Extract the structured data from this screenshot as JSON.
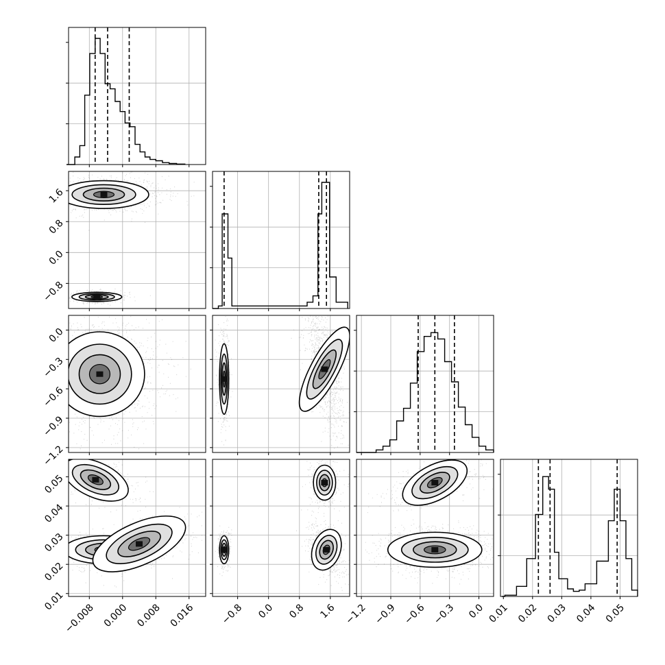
{
  "chart_data": {
    "type": "scatter",
    "subtype": "corner-plot",
    "grid": true,
    "quantiles_shown": true,
    "params": [
      {
        "range": [
          -0.013,
          0.02
        ],
        "ticks": [
          -0.008,
          0.0,
          0.008,
          0.016
        ],
        "tick_labels": [
          "−0.008",
          "0.000",
          "0.008",
          "0.016"
        ],
        "quantiles": [
          -0.0066,
          -0.0036,
          0.0016
        ],
        "hist": [
          [
            -0.0135,
            0
          ],
          [
            -0.0115,
            0.06
          ],
          [
            -0.0103,
            0.15
          ],
          [
            -0.0091,
            0.55
          ],
          [
            -0.0079,
            0.88
          ],
          [
            -0.0066,
            1.0
          ],
          [
            -0.0054,
            0.88
          ],
          [
            -0.0042,
            0.64
          ],
          [
            -0.003,
            0.6
          ],
          [
            -0.0018,
            0.5
          ],
          [
            -0.0006,
            0.42
          ],
          [
            0.0006,
            0.33
          ],
          [
            0.0018,
            0.3
          ],
          [
            0.003,
            0.16
          ],
          [
            0.0042,
            0.1
          ],
          [
            0.0054,
            0.06
          ],
          [
            0.0066,
            0.04
          ],
          [
            0.008,
            0.03
          ],
          [
            0.0096,
            0.015
          ],
          [
            0.0112,
            0.008
          ],
          [
            0.013,
            0.004
          ],
          [
            0.015,
            0.0
          ]
        ]
      },
      {
        "range": [
          -1.45,
          2.1
        ],
        "ticks": [
          -0.8,
          0.0,
          0.8,
          1.6
        ],
        "tick_labels": [
          "−0.8",
          "0.0",
          "0.8",
          "1.6"
        ],
        "quantiles": [
          -1.15,
          1.3,
          1.5
        ],
        "hist": [
          [
            -1.45,
            0
          ],
          [
            -1.3,
            0.02
          ],
          [
            -1.2,
            0.75
          ],
          [
            -1.05,
            0.4
          ],
          [
            -0.95,
            0.02
          ],
          [
            0.8,
            0.02
          ],
          [
            1.0,
            0.05
          ],
          [
            1.15,
            0.1
          ],
          [
            1.28,
            0.75
          ],
          [
            1.38,
            1.0
          ],
          [
            1.58,
            0.25
          ],
          [
            1.75,
            0.05
          ],
          [
            2.05,
            0.0
          ]
        ]
      },
      {
        "range": [
          -1.25,
          0.15
        ],
        "ticks": [
          -1.2,
          -0.9,
          -0.6,
          -0.3,
          0.0
        ],
        "tick_labels": [
          "−1.2",
          "−0.9",
          "−0.6",
          "−0.3",
          "0.0"
        ],
        "quantiles": [
          -0.62,
          -0.45,
          -0.25
        ],
        "hist": [
          [
            -1.25,
            0
          ],
          [
            -1.05,
            0.02
          ],
          [
            -0.98,
            0.05
          ],
          [
            -0.91,
            0.1
          ],
          [
            -0.84,
            0.25
          ],
          [
            -0.77,
            0.35
          ],
          [
            -0.7,
            0.55
          ],
          [
            -0.63,
            0.8
          ],
          [
            -0.56,
            0.92
          ],
          [
            -0.49,
            0.95
          ],
          [
            -0.42,
            0.9
          ],
          [
            -0.35,
            0.72
          ],
          [
            -0.28,
            0.56
          ],
          [
            -0.21,
            0.36
          ],
          [
            -0.14,
            0.22
          ],
          [
            -0.07,
            0.12
          ],
          [
            0.0,
            0.05
          ],
          [
            0.07,
            0.02
          ],
          [
            0.15,
            0.0
          ]
        ]
      },
      {
        "range": [
          0.009,
          0.056
        ],
        "ticks": [
          0.01,
          0.02,
          0.03,
          0.04,
          0.05
        ],
        "tick_labels": [
          "0.01",
          "0.02",
          "0.03",
          "0.04",
          "0.05"
        ],
        "quantiles": [
          0.022,
          0.026,
          0.049
        ],
        "hist": [
          [
            0.0095,
            0
          ],
          [
            0.0105,
            0.01
          ],
          [
            0.0145,
            0.08
          ],
          [
            0.018,
            0.3
          ],
          [
            0.021,
            0.65
          ],
          [
            0.0235,
            0.95
          ],
          [
            0.0255,
            0.85
          ],
          [
            0.0275,
            0.35
          ],
          [
            0.029,
            0.14
          ],
          [
            0.032,
            0.06
          ],
          [
            0.034,
            0.04
          ],
          [
            0.036,
            0.05
          ],
          [
            0.038,
            0.1
          ],
          [
            0.042,
            0.28
          ],
          [
            0.046,
            0.6
          ],
          [
            0.048,
            0.85
          ],
          [
            0.05,
            0.6
          ],
          [
            0.052,
            0.3
          ],
          [
            0.054,
            0.05
          ],
          [
            0.056,
            0.0
          ]
        ]
      }
    ],
    "modes": {
      "1_0": [
        {
          "x": -0.0045,
          "y": 1.5,
          "sx": 0.0045,
          "sy": 0.15,
          "c": 0.0,
          "w": 0.7
        },
        {
          "x": -0.0062,
          "y": -1.15,
          "sx": 0.0025,
          "sy": 0.05,
          "c": 0.0,
          "w": 0.3
        }
      ],
      "2_0": [
        {
          "x": -0.0055,
          "y": -0.45,
          "sx": 0.0045,
          "sy": 0.18,
          "c": 0.0,
          "w": 1.0
        }
      ],
      "2_1": [
        {
          "x": -1.15,
          "y": -0.5,
          "sx": 0.05,
          "sy": 0.15,
          "c": 0.0,
          "w": 0.3
        },
        {
          "x": 1.45,
          "y": -0.4,
          "sx": 0.15,
          "sy": 0.2,
          "c": -0.6,
          "w": 0.7
        }
      ],
      "3_0": [
        {
          "x": -0.0065,
          "y": 0.049,
          "sx": 0.0035,
          "sy": 0.0025,
          "c": -0.5,
          "w": 0.3
        },
        {
          "x": -0.0045,
          "y": 0.025,
          "sx": 0.004,
          "sy": 0.002,
          "c": 0.0,
          "w": 0.45
        },
        {
          "x": 0.004,
          "y": 0.027,
          "sx": 0.005,
          "sy": 0.003,
          "c": 0.5,
          "w": 0.25
        }
      ],
      "3_1": [
        {
          "x": -1.15,
          "y": 0.025,
          "sx": 0.05,
          "sy": 0.002,
          "c": 0.0,
          "w": 0.3
        },
        {
          "x": 1.45,
          "y": 0.048,
          "sx": 0.12,
          "sy": 0.0025,
          "c": 0.0,
          "w": 0.3
        },
        {
          "x": 1.5,
          "y": 0.025,
          "sx": 0.15,
          "sy": 0.003,
          "c": -0.4,
          "w": 0.4
        }
      ],
      "3_2": [
        {
          "x": -0.45,
          "y": 0.048,
          "sx": 0.15,
          "sy": 0.0025,
          "c": 0.6,
          "w": 0.35
        },
        {
          "x": -0.45,
          "y": 0.025,
          "sx": 0.2,
          "sy": 0.0025,
          "c": 0.0,
          "w": 0.65
        }
      ]
    }
  }
}
